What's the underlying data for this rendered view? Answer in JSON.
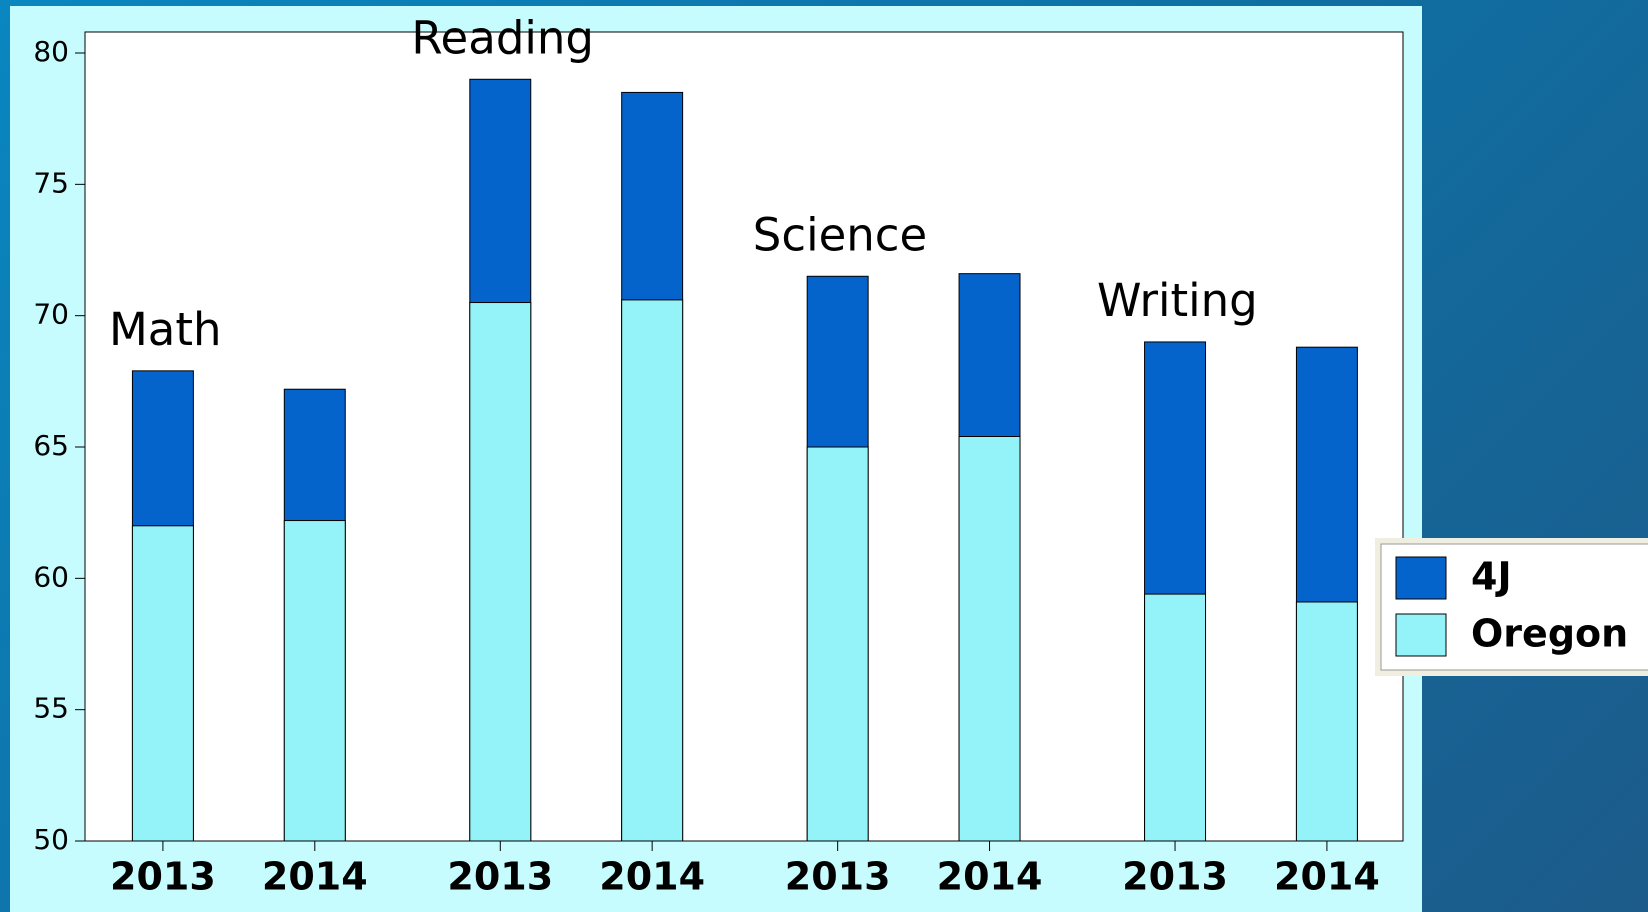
{
  "chart_data": {
    "type": "bar",
    "overlap": true,
    "groups": [
      "Math",
      "Reading",
      "Science",
      "Writing"
    ],
    "categories": [
      "2013",
      "2014",
      "2013",
      "2014",
      "2013",
      "2014",
      "2013",
      "2014"
    ],
    "series": [
      {
        "name": "4J",
        "color": "#0563cc",
        "values": [
          67.9,
          67.2,
          79.0,
          78.5,
          71.5,
          71.6,
          69.0,
          68.8
        ]
      },
      {
        "name": "Oregon",
        "color": "#93f3f9",
        "values": [
          62.0,
          62.2,
          70.5,
          70.6,
          65.0,
          65.4,
          59.4,
          59.1
        ]
      }
    ],
    "ylim": [
      50,
      80.8
    ],
    "yticks": [
      50,
      55,
      60,
      65,
      70,
      75,
      80
    ],
    "legend": "right"
  }
}
